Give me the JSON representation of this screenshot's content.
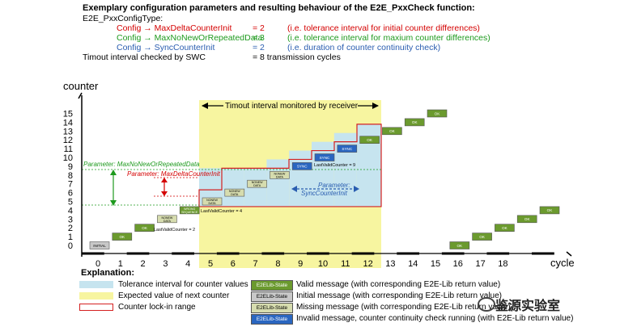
{
  "header": {
    "title": "Exemplary configuration parameters and resulting behaviour of the E2E_PxxCheck function:",
    "config_type": "E2E_PxxConfigType:",
    "rows": [
      {
        "param": "Config → MaxDeltaCounterInit",
        "value": "= 2",
        "note": "(i.e. tolerance interval for initial counter differences)",
        "color": "#d40000"
      },
      {
        "param": "Config → MaxNoNewOrRepeatedData",
        "value": "= 3",
        "note": "(i.e. tolerance interval for maxium counter differences)",
        "color": "#1e9a1e"
      },
      {
        "param": "Config → SyncCounterInit",
        "value": "= 2",
        "note": "(i.e. duration of counter continuity check)",
        "color": "#2a5db0"
      }
    ],
    "timeout": {
      "label": "Timout interval checked by SWC",
      "value": "= 8 transmission cycles"
    }
  },
  "chart": {
    "y_axis_label": "counter",
    "x_axis_label": "cycle",
    "y_ticks": [
      "0",
      "1",
      "2",
      "3",
      "4",
      "5",
      "6",
      "7",
      "8",
      "9",
      "10",
      "11",
      "12",
      "13",
      "14",
      "15"
    ],
    "x_ticks": [
      "0",
      "1",
      "2",
      "3",
      "4",
      "5",
      "6",
      "7",
      "8",
      "9",
      "10",
      "11",
      "12",
      "13",
      "14",
      "15",
      "16",
      "17",
      "18"
    ],
    "timeout_banner": "Timout interval monitored by receiver",
    "param_green": "Parameter: MaxNoNewOrRepeatedData",
    "param_red": "Parameter: MaxDeltaCounterInit",
    "param_blue_1": "Parameter:",
    "param_blue_2": "SyncCounterInit",
    "note_last_valid_2": "LastValidCounter = 2",
    "note_last_valid_4": "LastValidCounter = 4",
    "note_last_valid_9": "LastValidCounter = 9",
    "colors": {
      "ok": "#6b9a2e",
      "initial": "#c8c8c8",
      "nonew": "#d6dcae",
      "sync": "#2a66c0",
      "tolerance": "#c6e4ef",
      "timeout": "#f7f5a0",
      "lockin": "#d42020"
    },
    "boxes": [
      {
        "cycle": 0,
        "counter": 0,
        "type": "initial",
        "label": "INITIAL"
      },
      {
        "cycle": 1,
        "counter": 1,
        "type": "ok",
        "label": "OK"
      },
      {
        "cycle": 2,
        "counter": 2,
        "type": "ok",
        "label": "OK"
      },
      {
        "cycle": 3,
        "counter": 3,
        "type": "nonew",
        "label": "NONEW DATA"
      },
      {
        "cycle": 4,
        "counter": 4,
        "type": "ok",
        "label": "WRONG SEQUENCE"
      },
      {
        "cycle": 5,
        "counter": 5,
        "type": "nonew",
        "label": "NONEW DATA"
      },
      {
        "cycle": 6,
        "counter": 6,
        "type": "nonew",
        "label": "NONEW DATA"
      },
      {
        "cycle": 7,
        "counter": 7,
        "type": "nonew",
        "label": "NONEW DATA"
      },
      {
        "cycle": 8,
        "counter": 8,
        "type": "nonew",
        "label": "NONEW DATA"
      },
      {
        "cycle": 9,
        "counter": 9,
        "type": "sync",
        "label": "SYNC"
      },
      {
        "cycle": 10,
        "counter": 10,
        "type": "sync",
        "label": "SYNC"
      },
      {
        "cycle": 11,
        "counter": 11,
        "type": "sync",
        "label": "SYNC"
      },
      {
        "cycle": 12,
        "counter": 12,
        "type": "ok",
        "label": "OK"
      },
      {
        "cycle": 13,
        "counter": 13,
        "type": "ok",
        "label": "OK"
      },
      {
        "cycle": 14,
        "counter": 14,
        "type": "ok",
        "label": "OK"
      },
      {
        "cycle": 15,
        "counter": 15,
        "type": "ok",
        "label": "OK"
      },
      {
        "cycle": 16,
        "counter": 0,
        "type": "ok",
        "label": "OK"
      },
      {
        "cycle": 17,
        "counter": 1,
        "type": "ok",
        "label": "OK"
      },
      {
        "cycle": 18,
        "counter": 2,
        "type": "ok",
        "label": "OK"
      },
      {
        "cycle": 19,
        "counter": 3,
        "type": "ok",
        "label": "OK"
      },
      {
        "cycle": 20,
        "counter": 4,
        "type": "ok",
        "label": "OK"
      }
    ]
  },
  "legend": {
    "title": "Explanation:",
    "left": [
      {
        "label": "Tolerance interval for counter values",
        "kind": "tolerance"
      },
      {
        "label": "Expected value of next counter",
        "kind": "nonew"
      },
      {
        "label": "Counter lock-in range",
        "kind": "lockin"
      }
    ],
    "right": [
      {
        "box": "E2ELib-State",
        "label": "Valid message (with corresponding E2E-Lib return value)",
        "kind": "ok"
      },
      {
        "box": "E2ELib-State",
        "label": "Initial message (with corresponding E2E-Lib return value)",
        "kind": "initial"
      },
      {
        "box": "E2ELib-State",
        "label": "Missing message (with corresponding E2E-Lib return value)",
        "kind": "nonew"
      },
      {
        "box": "E2ELib-State",
        "label": "Invalid message, counter continuity check running (with E2E-Lib return value)",
        "kind": "sync"
      }
    ]
  },
  "watermark": {
    "text": "鉴源实验室"
  }
}
